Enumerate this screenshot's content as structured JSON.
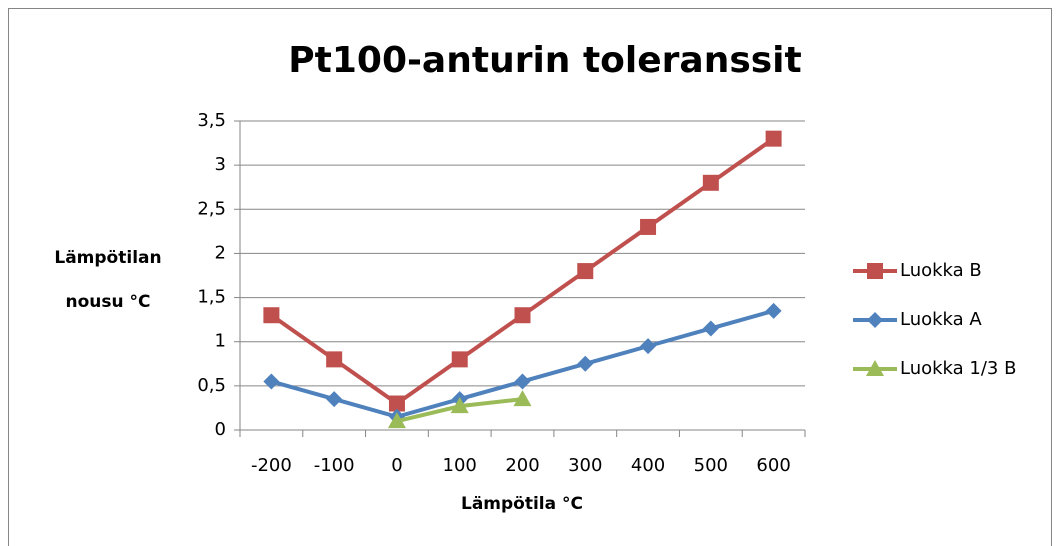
{
  "chart_data": {
    "type": "line",
    "title": "Pt100-anturin toleranssit",
    "x_label": "Lämpötila °C",
    "y_label": [
      "Lämpötilan",
      "nousu °C"
    ],
    "categories": [
      "-200",
      "-100",
      "0",
      "100",
      "200",
      "300",
      "400",
      "500",
      "600"
    ],
    "series": [
      {
        "name": "Luokka B",
        "color": "#c0504d",
        "marker": "square",
        "values": [
          1.3,
          0.8,
          0.3,
          0.8,
          1.3,
          1.8,
          2.3,
          2.8,
          3.3
        ]
      },
      {
        "name": "Luokka A",
        "color": "#4f81bd",
        "marker": "diamond",
        "values": [
          0.55,
          0.35,
          0.15,
          0.35,
          0.55,
          0.75,
          0.95,
          1.15,
          1.35
        ]
      },
      {
        "name": "Luokka 1/3 B",
        "color": "#9bbb59",
        "marker": "triangle",
        "values": [
          null,
          null,
          0.1,
          0.27,
          0.35,
          null,
          null,
          null,
          null
        ]
      }
    ],
    "ylim": [
      0,
      3.5
    ],
    "yticks": [
      0,
      {
        "value": 0.5,
        "label": "0,5"
      },
      1,
      {
        "value": 1.5,
        "label": "1,5"
      },
      2,
      {
        "value": 2.5,
        "label": "2,5"
      },
      3,
      {
        "value": 3.5,
        "label": "3,5"
      }
    ],
    "grid": true,
    "legend": "right"
  }
}
